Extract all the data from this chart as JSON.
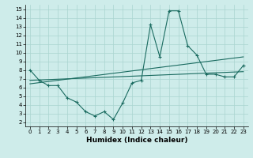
{
  "xlabel": "Humidex (Indice chaleur)",
  "bg_color": "#ceecea",
  "grid_color": "#aad4d0",
  "line_color": "#1a6b60",
  "xlim": [
    -0.5,
    23.5
  ],
  "ylim": [
    1.5,
    15.5
  ],
  "xticks": [
    0,
    1,
    2,
    3,
    4,
    5,
    6,
    7,
    8,
    9,
    10,
    11,
    12,
    13,
    14,
    15,
    16,
    17,
    18,
    19,
    20,
    21,
    22,
    23
  ],
  "yticks": [
    2,
    3,
    4,
    5,
    6,
    7,
    8,
    9,
    10,
    11,
    12,
    13,
    14,
    15
  ],
  "main_x": [
    0,
    1,
    2,
    3,
    4,
    5,
    6,
    7,
    8,
    9,
    10,
    11,
    12,
    13,
    14,
    15,
    16,
    17,
    18,
    19,
    20,
    21,
    22,
    23
  ],
  "main_y": [
    8.0,
    6.8,
    6.2,
    6.2,
    4.8,
    4.3,
    3.2,
    2.7,
    3.2,
    2.3,
    4.2,
    6.5,
    6.8,
    13.2,
    9.5,
    14.8,
    14.8,
    10.8,
    9.7,
    7.5,
    7.5,
    7.2,
    7.2,
    8.5
  ],
  "line2_x": [
    0,
    23
  ],
  "line2_y": [
    6.4,
    9.5
  ],
  "line3_x": [
    0,
    23
  ],
  "line3_y": [
    6.8,
    7.8
  ],
  "xlabel_fontsize": 6.5,
  "tick_fontsize": 5.0
}
